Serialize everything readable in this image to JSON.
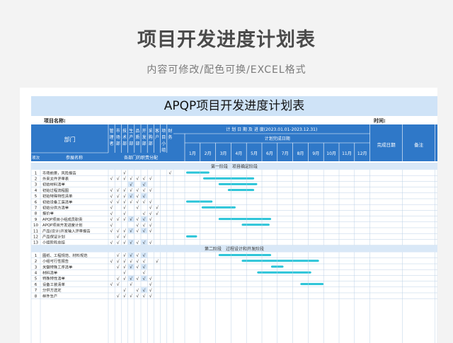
{
  "page": {
    "title": "项目开发进度计划表",
    "subtitle": "内容可修改/配色可换/EXCEL格式"
  },
  "sheet": {
    "title": "APQP项目开发进度计划表",
    "project_label": "项目名称:",
    "time_label": "时间:",
    "dept_header": "部门",
    "departments": [
      "管理者",
      "市场部",
      "技术部",
      "生产部",
      "品质部",
      "开发部",
      "采购部",
      "客户",
      "项目小组",
      "财务"
    ],
    "plan_caption": "计 划 日 期 及 进 度(2023.01.01-2023.12.31)",
    "plan_sub": "计划完成日期",
    "months": [
      "1月",
      "2月",
      "3月",
      "4月",
      "5月",
      "6月",
      "7月",
      "8月",
      "9月",
      "10月",
      "11月",
      "12月"
    ],
    "done_date": "完成日期",
    "remark": "备注",
    "owner": "责任人员",
    "seq_header": "项次",
    "item_header": "参展名称",
    "duty_header": "各部门的职责分配",
    "check": "√",
    "phase1": "第一阶段　项目确定阶段",
    "phase2": "第二阶段　过程设计和开发阶段",
    "bar_color": "#29c4d8"
  },
  "rows1": [
    {
      "no": "1",
      "name": "市场前景，风险报告",
      "checks": [
        0,
        0,
        1,
        0,
        0,
        0,
        0,
        0,
        0,
        1
      ],
      "bar": [
        1,
        2.6
      ]
    },
    {
      "no": "2",
      "name": "外来文件评审表",
      "checks": [
        1,
        1,
        1,
        1,
        1,
        1,
        1,
        0,
        0,
        0
      ],
      "bar": [
        2.1,
        5.5
      ]
    },
    {
      "no": "3",
      "name": "初始材料清单",
      "checks": [
        0,
        0,
        0,
        1,
        0,
        1,
        0,
        0,
        0,
        0
      ],
      "bar": [
        3.1,
        5.7
      ]
    },
    {
      "no": "4",
      "name": "初始过程流程图",
      "checks": [
        1,
        1,
        1,
        1,
        1,
        1,
        1,
        0,
        0,
        0
      ],
      "bar": [
        3.7,
        5.5
      ]
    },
    {
      "no": "5",
      "name": "初始特殊特性清单",
      "checks": [
        1,
        1,
        1,
        1,
        1,
        1,
        0,
        0,
        0,
        0
      ],
      "bar": [
        0,
        0
      ]
    },
    {
      "no": "6",
      "name": "初始设备工装清单",
      "checks": [
        1,
        1,
        1,
        1,
        1,
        1,
        1,
        0,
        0,
        0
      ],
      "bar": [
        1,
        2.8
      ]
    },
    {
      "no": "7",
      "name": "初始分供方清单",
      "checks": [
        1,
        0,
        1,
        0,
        1,
        0,
        1,
        1,
        0,
        0
      ],
      "bar": [
        2,
        4.3
      ]
    },
    {
      "no": "8",
      "name": "报价单",
      "checks": [
        1,
        0,
        1,
        0,
        0,
        1,
        1,
        1,
        0,
        0
      ],
      "bar": [
        0,
        0
      ]
    },
    {
      "no": "9",
      "name": "APQP项目小组成员职责",
      "checks": [
        1,
        1,
        1,
        1,
        1,
        1,
        1,
        0,
        0,
        0
      ],
      "bar": [
        3.1,
        6.6
      ]
    },
    {
      "no": "10",
      "name": "APQP项目开发进度计划",
      "checks": [
        1,
        0,
        0,
        0,
        1,
        1,
        1,
        0,
        0,
        0
      ],
      "bar": [
        4.6,
        6.5
      ]
    },
    {
      "no": "11",
      "name": "产品(设计)开发输入评审报告",
      "checks": [
        1,
        1,
        1,
        1,
        1,
        1,
        1,
        0,
        0,
        0
      ],
      "bar": [
        0,
        0
      ]
    },
    {
      "no": "12",
      "name": "产品保证计划",
      "checks": [
        0,
        1,
        1,
        0,
        0,
        0,
        0,
        0,
        0,
        0
      ],
      "bar": [
        1,
        1.8
      ]
    },
    {
      "no": "13",
      "name": "小组阶段总结",
      "checks": [
        1,
        1,
        1,
        1,
        1,
        1,
        1,
        0,
        0,
        0
      ],
      "bar": [
        0,
        0
      ]
    }
  ],
  "rows2": [
    {
      "no": "1",
      "name": "图纸、工程规范、材料规范",
      "checks": [
        0,
        1,
        1,
        1,
        1,
        1,
        0,
        0,
        0,
        0
      ],
      "bar": [
        3.1,
        6.6
      ]
    },
    {
      "no": "2",
      "name": "小组可行性报告",
      "checks": [
        1,
        1,
        1,
        1,
        1,
        1,
        0,
        1,
        0,
        0
      ],
      "bar": [
        4.6,
        9.7
      ]
    },
    {
      "no": "3",
      "name": "关键特殊工序清单",
      "checks": [
        0,
        1,
        1,
        1,
        1,
        1,
        0,
        0,
        0,
        0
      ],
      "bar": [
        6.5,
        7.4
      ]
    },
    {
      "no": "4",
      "name": "材料清单",
      "checks": [
        0,
        0,
        1,
        0,
        0,
        1,
        0,
        0,
        0,
        0
      ],
      "bar": [
        5.6,
        9.2
      ]
    },
    {
      "no": "5",
      "name": "特殊特性清单",
      "checks": [
        0,
        1,
        1,
        1,
        1,
        1,
        1,
        0,
        0,
        0
      ],
      "bar": [
        0,
        0
      ]
    },
    {
      "no": "6",
      "name": "设备工装清单",
      "checks": [
        1,
        1,
        0,
        1,
        0,
        0,
        1,
        0,
        0,
        0
      ],
      "bar": [
        8.4,
        10
      ]
    },
    {
      "no": "7",
      "name": "分供方选定",
      "checks": [
        0,
        0,
        1,
        0,
        1,
        1,
        1,
        0,
        0,
        0
      ],
      "bar": [
        0,
        0
      ]
    },
    {
      "no": "8",
      "name": "样件生产",
      "checks": [
        0,
        1,
        1,
        1,
        1,
        1,
        1,
        0,
        0,
        0
      ],
      "bar": [
        0,
        0
      ]
    }
  ]
}
